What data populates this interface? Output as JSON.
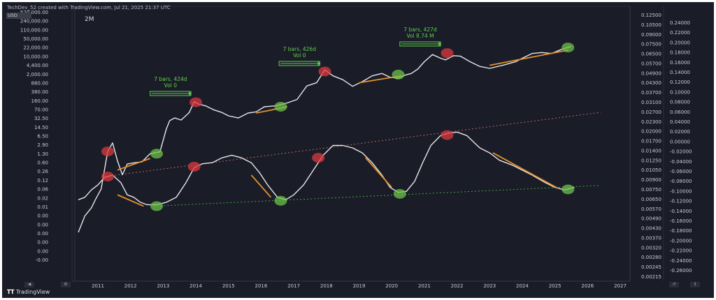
{
  "header": {
    "credit": "TechDev_52 created with TradingView.com, Jul 21, 2025 21:37 UTC",
    "currency_badge": "USD",
    "interval": "2M",
    "logo": "TradingView",
    "logo_icon": "tradingview-logo-icon"
  },
  "colors": {
    "background": "#1a1c27",
    "price_line": "#e6e6ea",
    "oscillator_line": "#e6e6ea",
    "trend_segment": "#e3912d",
    "top_marker": "#d9383d",
    "bottom_marker": "#6cc04a",
    "upper_dotted": "#b06a6a",
    "lower_dotted": "#3fa83f",
    "annotation": "#5fcf4f"
  },
  "chart_data": {
    "type": "line",
    "x_ticks": [
      "2011",
      "2012",
      "2013",
      "2014",
      "2015",
      "2016",
      "2017",
      "2018",
      "2019",
      "2020",
      "2021",
      "2022",
      "2023",
      "2024",
      "2025",
      "2026",
      "2027"
    ],
    "left_axis_labels": [
      "520,000.00",
      "240,000.00",
      "110,000.00",
      "50,000.00",
      "22,000.00",
      "10,000.00",
      "4,400.00",
      "2,000.00",
      "880.00",
      "380.00",
      "160.00",
      "70.00",
      "32.50",
      "14.50",
      "6.50",
      "2.90",
      "1.30",
      "0.60",
      "0.26",
      "0.12",
      "0.06",
      "0.02",
      "0.01",
      "0.00",
      "0.00",
      "0.00",
      "0.00",
      "0.00",
      "-0.00"
    ],
    "right_axis_1_labels": [
      "0.12500",
      "0.10500",
      "0.09000",
      "0.07500",
      "0.06500",
      "0.05700",
      "0.04900",
      "0.04300",
      "0.03700",
      "0.03100",
      "0.02700",
      "0.02300",
      "0.02000",
      "0.01700",
      "0.01400",
      "0.01250",
      "0.01050",
      "0.00900",
      "0.00750",
      "0.00650",
      "0.00570",
      "0.00490",
      "0.00430",
      "0.00370",
      "0.00320",
      "0.00280",
      "0.00245",
      "0.00215"
    ],
    "right_axis_2_labels": [
      "0.24000",
      "0.22000",
      "0.20000",
      "0.18000",
      "0.16000",
      "0.14000",
      "0.12000",
      "0.10000",
      "0.08000",
      "0.06000",
      "0.04000",
      "0.02000",
      "0.00000",
      "-0.02000",
      "-0.04000",
      "-0.06000",
      "-0.08000",
      "-0.10000",
      "-0.12000",
      "-0.14000",
      "-0.16000",
      "-0.18000",
      "-0.20000",
      "-0.22000",
      "-0.24000",
      "-0.26000"
    ],
    "series": [
      {
        "role": "price",
        "x": [
          2010.4,
          2010.6,
          2010.8,
          2010.95,
          2011.1,
          2011.3,
          2011.45,
          2011.6,
          2011.75,
          2011.9,
          2012.1,
          2012.35,
          2012.6,
          2012.9,
          2013.1,
          2013.2,
          2013.35,
          2013.55,
          2013.8,
          2013.95,
          2014.1,
          2014.3,
          2014.55,
          2014.8,
          2015.0,
          2015.3,
          2015.6,
          2015.85,
          2016.1,
          2016.45,
          2016.8,
          2017.1,
          2017.4,
          2017.7,
          2017.95,
          2018.2,
          2018.5,
          2018.8,
          2019.1,
          2019.4,
          2019.7,
          2019.95,
          2020.2,
          2020.4,
          2020.6,
          2020.8,
          2021.0,
          2021.25,
          2021.5,
          2021.65,
          2021.9,
          2022.1,
          2022.4,
          2022.7,
          2023.0,
          2023.4,
          2023.8,
          2024.0,
          2024.3,
          2024.6,
          2024.9,
          2025.2,
          2025.5
        ],
        "y": [
          0.015,
          0.06,
          0.12,
          0.28,
          0.6,
          14.5,
          30,
          6.5,
          2.0,
          5.0,
          5.5,
          6.0,
          12,
          14,
          100,
          200,
          250,
          210,
          400,
          1000,
          800,
          700,
          500,
          400,
          300,
          250,
          380,
          420,
          650,
          700,
          900,
          1200,
          3800,
          5000,
          15000,
          9000,
          6500,
          3700,
          5500,
          9000,
          11000,
          8000,
          7400,
          9500,
          11000,
          16000,
          30000,
          55000,
          40000,
          35000,
          50000,
          48000,
          30000,
          20000,
          17000,
          22000,
          30000,
          40000,
          60000,
          65000,
          60000,
          85000,
          110000
        ]
      },
      {
        "role": "oscillator",
        "x": [
          2010.4,
          2010.6,
          2010.8,
          2011.0,
          2011.2,
          2011.45,
          2011.7,
          2011.9,
          2012.1,
          2012.3,
          2012.5,
          2012.8,
          2013.1,
          2013.4,
          2013.7,
          2013.95,
          2014.2,
          2014.5,
          2014.8,
          2015.1,
          2015.4,
          2015.7,
          2015.95,
          2016.2,
          2016.5,
          2016.75,
          2017.0,
          2017.3,
          2017.6,
          2017.9,
          2018.2,
          2018.5,
          2018.8,
          2019.1,
          2019.4,
          2019.7,
          2019.95,
          2020.2,
          2020.45,
          2020.7,
          2020.95,
          2021.2,
          2021.5,
          2021.75,
          2022.0,
          2022.3,
          2022.7,
          2023.0,
          2023.3,
          2023.7,
          2024.0,
          2024.3,
          2024.7,
          2025.0,
          2025.3,
          2025.6
        ],
        "y": [
          -0.115,
          -0.11,
          -0.095,
          -0.085,
          -0.07,
          -0.065,
          -0.08,
          -0.105,
          -0.11,
          -0.12,
          -0.125,
          -0.125,
          -0.12,
          -0.11,
          -0.08,
          -0.05,
          -0.042,
          -0.04,
          -0.03,
          -0.025,
          -0.03,
          -0.04,
          -0.06,
          -0.085,
          -0.11,
          -0.115,
          -0.105,
          -0.085,
          -0.055,
          -0.025,
          -0.005,
          -0.005,
          -0.01,
          -0.02,
          -0.04,
          -0.065,
          -0.09,
          -0.1,
          -0.098,
          -0.078,
          -0.04,
          -0.005,
          0.015,
          0.02,
          0.022,
          0.015,
          -0.01,
          -0.02,
          -0.035,
          -0.045,
          -0.055,
          -0.065,
          -0.08,
          -0.09,
          -0.095,
          -0.09
        ]
      }
    ],
    "tops": [
      {
        "x": 2011.3,
        "y": 14.5,
        "on": "price"
      },
      {
        "x": 2014.0,
        "y": 950,
        "on": "price"
      },
      {
        "x": 2017.95,
        "y": 13000,
        "on": "price"
      },
      {
        "x": 2021.7,
        "y": 62000,
        "on": "price"
      },
      {
        "x": 2011.3,
        "y": -0.068,
        "on": "osc"
      },
      {
        "x": 2013.95,
        "y": -0.048,
        "on": "osc"
      },
      {
        "x": 2017.75,
        "y": -0.03,
        "on": "osc"
      },
      {
        "x": 2021.7,
        "y": 0.016,
        "on": "osc"
      }
    ],
    "bottoms": [
      {
        "x": 2012.8,
        "y": 12,
        "on": "price"
      },
      {
        "x": 2016.6,
        "y": 650,
        "on": "price"
      },
      {
        "x": 2020.2,
        "y": 10000,
        "on": "price"
      },
      {
        "x": 2025.4,
        "y": 100000,
        "on": "price"
      },
      {
        "x": 2012.8,
        "y": -0.128,
        "on": "osc"
      },
      {
        "x": 2016.6,
        "y": -0.117,
        "on": "osc"
      },
      {
        "x": 2020.25,
        "y": -0.103,
        "on": "osc"
      },
      {
        "x": 2025.4,
        "y": -0.094,
        "on": "osc"
      }
    ],
    "trend_segments": [
      {
        "on": "price",
        "x": [
          2011.6,
          2012.6
        ],
        "y": [
          3.0,
          8.0
        ]
      },
      {
        "on": "price",
        "x": [
          2015.85,
          2016.8
        ],
        "y": [
          380,
          650
        ]
      },
      {
        "on": "price",
        "x": [
          2019.0,
          2020.3
        ],
        "y": [
          5000,
          9000
        ]
      },
      {
        "on": "price",
        "x": [
          2023.0,
          2025.4
        ],
        "y": [
          22000,
          80000
        ]
      },
      {
        "on": "osc",
        "x": [
          2011.6,
          2012.4
        ],
        "y": [
          -0.105,
          -0.128
        ]
      },
      {
        "on": "osc",
        "x": [
          2015.7,
          2016.3
        ],
        "y": [
          -0.065,
          -0.11
        ]
      },
      {
        "on": "osc",
        "x": [
          2019.2,
          2020.0
        ],
        "y": [
          -0.03,
          -0.09
        ]
      },
      {
        "on": "osc",
        "x": [
          2023.1,
          2025.1
        ],
        "y": [
          -0.02,
          -0.092
        ]
      }
    ],
    "dotted_lines": [
      {
        "role": "upper",
        "x": [
          2011.2,
          2026.4
        ],
        "y": [
          -0.068,
          0.062
        ]
      },
      {
        "role": "lower",
        "x": [
          2012.7,
          2026.4
        ],
        "y": [
          -0.128,
          -0.086
        ]
      }
    ],
    "annotations": [
      {
        "lines": [
          "7 bars, 424d",
          "Vol 0"
        ],
        "x_from": 2012.6,
        "x_to": 2013.85
      },
      {
        "lines": [
          "7 bars, 426d",
          "Vol 0"
        ],
        "x_from": 2016.55,
        "x_to": 2017.8
      },
      {
        "lines": [
          "7 bars, 427d",
          "Vol 8.74 M"
        ],
        "x_from": 2020.25,
        "x_to": 2021.5
      }
    ]
  }
}
